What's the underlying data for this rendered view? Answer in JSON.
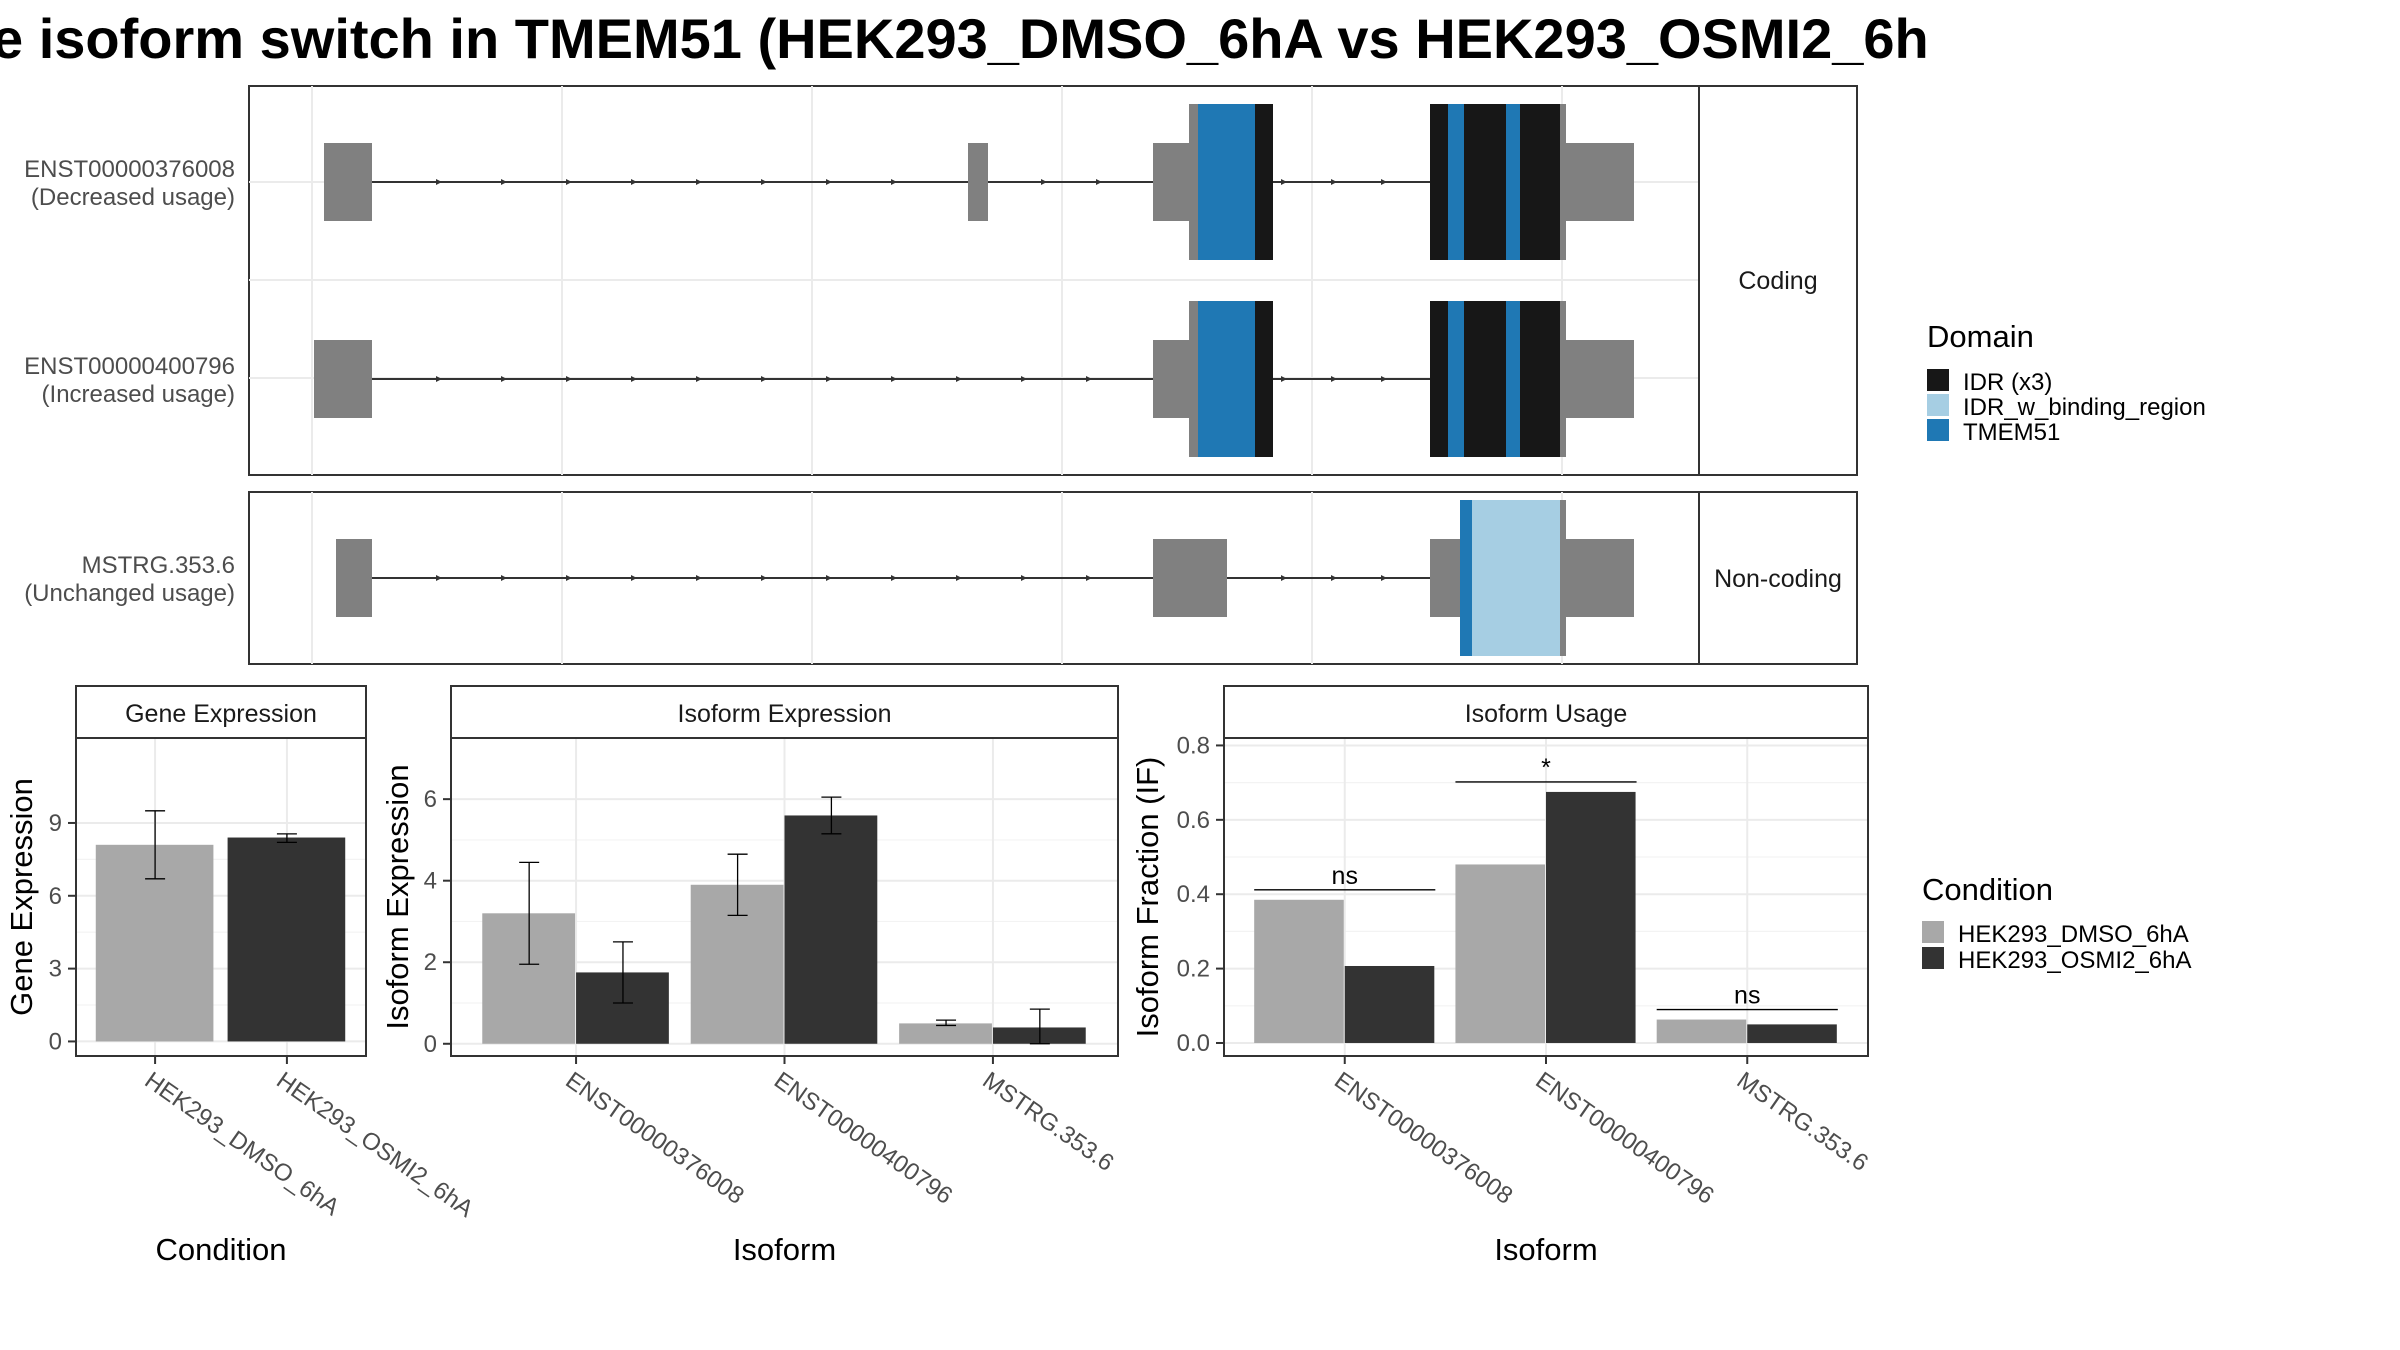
{
  "title": "e isoform switch in TMEM51 (HEK293_DMSO_6hA vs HEK293_OSMI2_6h",
  "colors": {
    "exon": "#808080",
    "idr": "#171717",
    "idr_binding": "#a6cee3",
    "tmem51": "#1f78b4",
    "dmso": "#a8a8a8",
    "osmi2": "#333333",
    "panel_border": "#333333",
    "strip_bg": "#ffffff",
    "grid": "#ebebeb"
  },
  "structure": {
    "coding_label": "Coding",
    "noncoding_label": "Non-coding",
    "isoforms": [
      {
        "id": "ENST00000376008",
        "usage": "(Decreased usage)",
        "group": "coding"
      },
      {
        "id": "ENST00000400796",
        "usage": "(Increased usage)",
        "group": "coding"
      },
      {
        "id": "MSTRG.353.6",
        "usage": "(Unchanged usage)",
        "group": "noncoding"
      }
    ]
  },
  "legend_domain": {
    "title": "Domain",
    "items": [
      {
        "label": "IDR (x3)",
        "color": "#171717"
      },
      {
        "label": "IDR_w_binding_region",
        "color": "#a6cee3"
      },
      {
        "label": "TMEM51",
        "color": "#1f78b4"
      }
    ]
  },
  "legend_condition": {
    "title": "Condition",
    "items": [
      {
        "label": "HEK293_DMSO_6hA",
        "color": "#a8a8a8"
      },
      {
        "label": "HEK293_OSMI2_6hA",
        "color": "#333333"
      }
    ]
  },
  "chart_data": [
    {
      "type": "bar",
      "title": "Gene Expression",
      "xlabel": "Condition",
      "ylabel": "Gene Expression",
      "categories": [
        "HEK293_DMSO_6hA",
        "HEK293_OSMI2_6hA"
      ],
      "values": [
        8.1,
        8.4
      ],
      "errors": [
        [
          6.7,
          9.5
        ],
        [
          8.2,
          8.55
        ]
      ],
      "ylim": [
        -0.6,
        12.5
      ],
      "yticks": [
        0,
        3,
        6,
        9
      ]
    },
    {
      "type": "bar",
      "title": "Isoform Expression",
      "xlabel": "Isoform",
      "ylabel": "Isoform Expression",
      "categories": [
        "ENST00000376008",
        "ENST00000400796",
        "MSTRG.353.6"
      ],
      "series": [
        {
          "name": "HEK293_DMSO_6hA",
          "values": [
            3.2,
            3.9,
            0.5
          ],
          "errors": [
            [
              1.95,
              4.45
            ],
            [
              3.15,
              4.65
            ],
            [
              0.45,
              0.58
            ]
          ]
        },
        {
          "name": "HEK293_OSMI2_6hA",
          "values": [
            1.75,
            5.6,
            0.4
          ],
          "errors": [
            [
              1.0,
              2.5
            ],
            [
              5.15,
              6.05
            ],
            [
              0.0,
              0.85
            ]
          ]
        }
      ],
      "ylim": [
        -0.3,
        7.5
      ],
      "yticks": [
        0,
        2,
        4,
        6
      ]
    },
    {
      "type": "bar",
      "title": "Isoform Usage",
      "xlabel": "Isoform",
      "ylabel": "Isoform Fraction (IF)",
      "categories": [
        "ENST00000376008",
        "ENST00000400796",
        "MSTRG.353.6"
      ],
      "series": [
        {
          "name": "HEK293_DMSO_6hA",
          "values": [
            0.385,
            0.48,
            0.063
          ]
        },
        {
          "name": "HEK293_OSMI2_6hA",
          "values": [
            0.207,
            0.675,
            0.05
          ]
        }
      ],
      "significance": [
        "ns",
        "*",
        "ns"
      ],
      "ylim": [
        -0.035,
        0.82
      ],
      "yticks": [
        0.0,
        0.2,
        0.4,
        0.6,
        0.8
      ],
      "ytick_labels": [
        "0.0",
        "0.2",
        "0.4",
        "0.6",
        "0.8"
      ]
    }
  ]
}
